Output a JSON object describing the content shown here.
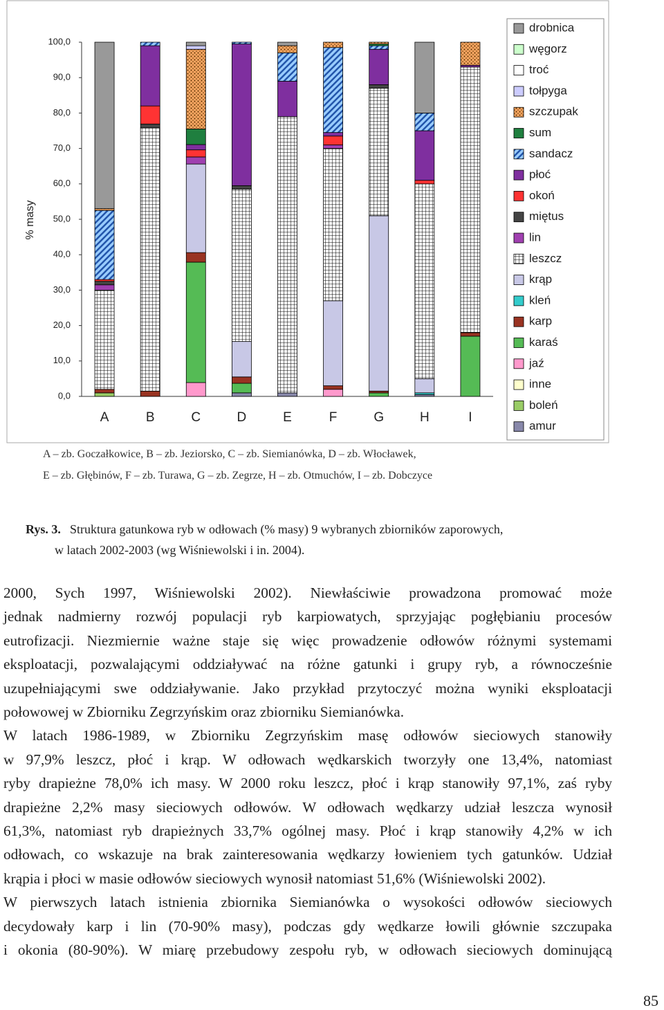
{
  "chart_data": {
    "type": "stacked-bar",
    "y_label": "% masy",
    "categories": [
      "A",
      "B",
      "C",
      "D",
      "E",
      "F",
      "G",
      "H",
      "I"
    ],
    "ylim": [
      0,
      100
    ],
    "yticks": [
      {
        "value": 0,
        "label": "0,0"
      },
      {
        "value": 10,
        "label": "10,0"
      },
      {
        "value": 20,
        "label": "20,0"
      },
      {
        "value": 30,
        "label": "30,0"
      },
      {
        "value": 40,
        "label": "40,0"
      },
      {
        "value": 50,
        "label": "50,0"
      },
      {
        "value": 60,
        "label": "60,0"
      },
      {
        "value": 70,
        "label": "70,0"
      },
      {
        "value": 80,
        "label": "80,0"
      },
      {
        "value": 90,
        "label": "90,0"
      },
      {
        "value": 100,
        "label": "100,0"
      }
    ],
    "series": [
      {
        "name": "drobnica",
        "color": "#999999",
        "values": [
          47,
          0,
          1,
          0,
          1,
          0,
          0,
          20,
          0
        ]
      },
      {
        "name": "węgorz",
        "color": "#ccffcc",
        "values": [
          0,
          0,
          0,
          0,
          0,
          0,
          0,
          0,
          0
        ]
      },
      {
        "name": "troć",
        "color": "#ffffff",
        "values": [
          0,
          0,
          0,
          0,
          0,
          0,
          0,
          0,
          0
        ]
      },
      {
        "name": "tołpyga",
        "color": "#ccccff",
        "values": [
          0,
          0,
          1,
          0,
          0,
          0,
          0,
          0,
          0
        ]
      },
      {
        "name": "szczupak",
        "color": "#f4a460",
        "pattern": "dots",
        "values": [
          0.5,
          0,
          22.5,
          0,
          2,
          1.5,
          0.5,
          0,
          6.5
        ]
      },
      {
        "name": "sum",
        "color": "#1f7f3f",
        "values": [
          0,
          0,
          4.4,
          0,
          0,
          0,
          0.5,
          0,
          0
        ]
      },
      {
        "name": "sandacz",
        "color": "#99ccff",
        "pattern": "stripes",
        "values": [
          19.5,
          1,
          0,
          0.5,
          8,
          24,
          1,
          5,
          0
        ]
      },
      {
        "name": "płoć",
        "color": "#7f2f9f",
        "values": [
          0,
          17,
          1.5,
          40,
          10,
          1,
          10,
          14,
          0.5
        ]
      },
      {
        "name": "okoń",
        "color": "#ff3333",
        "values": [
          0.5,
          5.1,
          2,
          0,
          0,
          2.5,
          0,
          1,
          0
        ]
      },
      {
        "name": "miętus",
        "color": "#444444",
        "values": [
          1,
          1.1,
          0,
          1,
          0,
          0,
          1,
          0,
          0
        ]
      },
      {
        "name": "lin",
        "color": "#a040b0",
        "values": [
          1.5,
          0,
          2,
          0,
          0,
          1,
          0,
          0,
          0
        ]
      },
      {
        "name": "leszcz",
        "color": "#ffffff",
        "pattern": "grid",
        "values": [
          28,
          74.3,
          0,
          43,
          78,
          43,
          36,
          55,
          75
        ]
      },
      {
        "name": "krąp",
        "color": "#c8c8e6",
        "values": [
          0,
          0,
          25,
          10,
          0,
          24,
          49.5,
          4,
          0
        ]
      },
      {
        "name": "kleń",
        "color": "#33cccc",
        "values": [
          0,
          0,
          0,
          0,
          0,
          0,
          0,
          0.5,
          0
        ]
      },
      {
        "name": "karp",
        "color": "#993322",
        "values": [
          1,
          1.5,
          2.7,
          1.8,
          0,
          1,
          0.5,
          0,
          1
        ]
      },
      {
        "name": "karaś",
        "color": "#55bb55",
        "values": [
          0,
          0,
          34,
          2.7,
          0,
          0,
          1,
          0,
          17
        ]
      },
      {
        "name": "jaź",
        "color": "#ff99cc",
        "values": [
          0,
          0,
          3.9,
          0,
          0,
          2,
          0,
          0,
          0
        ]
      },
      {
        "name": "inne",
        "color": "#ffffcc",
        "values": [
          0,
          0,
          0,
          0,
          0,
          0,
          0,
          0,
          0
        ]
      },
      {
        "name": "boleń",
        "color": "#99cc66",
        "values": [
          1,
          0,
          0,
          0,
          0,
          0,
          0,
          0,
          0
        ]
      },
      {
        "name": "amur",
        "color": "#8888aa",
        "values": [
          0,
          0,
          0,
          1,
          1,
          0,
          0,
          0.5,
          0
        ]
      }
    ]
  },
  "legend_note": [
    "A – zb. Goczałkowice, B – zb. Jeziorsko, C – zb. Siemianówka, D – zb. Włocławek,",
    "E – zb. Głębinów, F – zb. Turawa, G – zb. Zegrze, H – zb. Otmuchów, I – zb. Dobczyce"
  ],
  "figure_caption": {
    "label": "Rys. 3.",
    "lines": [
      "Struktura gatunkowa ryb w odłowach (% masy) 9 wybranych zbiorników zaporowych,",
      "w latach 2002-2003 (wg Wiśniewolski i in. 2004)."
    ]
  },
  "body": [
    [
      "2000, Sych 1997, Wiśniewolski 2002). Niewłaściwie prowadzona promować może",
      "jednak nadmierny rozwój populacji ryb karpiowatych, sprzyjając pogłębianiu procesów",
      "eutrofizacji. Niezmiernie ważne staje się więc prowadzenie odłowów różnymi systemami",
      "eksploatacji, pozwalającymi oddziaływać na różne gatunki i grupy ryb, a równocześnie",
      "uzupełniającymi swe oddziaływanie. Jako przykład przytoczyć można wyniki eksploatacji",
      "połowowej w Zbiorniku Zegrzyńskim oraz zbiorniku Siemianówka."
    ],
    [
      "W latach 1986-1989, w Zbiorniku Zegrzyńskim masę odłowów sieciowych stanowiły",
      "w 97,9% leszcz, płoć i krąp. W odłowach wędkarskich tworzyły one 13,4%, natomiast",
      "ryby drapieżne 78,0% ich masy. W 2000 roku leszcz, płoć i krąp stanowiły 97,1%, zaś ryby",
      "drapieżne 2,2% masy sieciowych odłowów. W odłowach wędkarzy udział leszcza wynosił",
      "61,3%, natomiast ryb drapieżnych 33,7% ogólnej masy. Płoć i krąp stanowiły 4,2% w ich",
      "odłowach, co wskazuje na brak zainteresowania wędkarzy łowieniem tych gatunków. Udział",
      "krąpia i płoci w masie odłowów sieciowych wynosił natomiast 51,6% (Wiśniewolski 2002)."
    ],
    [
      "W pierwszych latach istnienia zbiornika Siemianówka o wysokości odłowów sieciowych",
      "decydowały karp i lin (70-90% masy), podczas gdy wędkarze łowili głównie szczupaka",
      "i okonia (80-90%). W miarę przebudowy zespołu ryb, w odłowach sieciowych dominującą"
    ]
  ],
  "page_number": "85"
}
